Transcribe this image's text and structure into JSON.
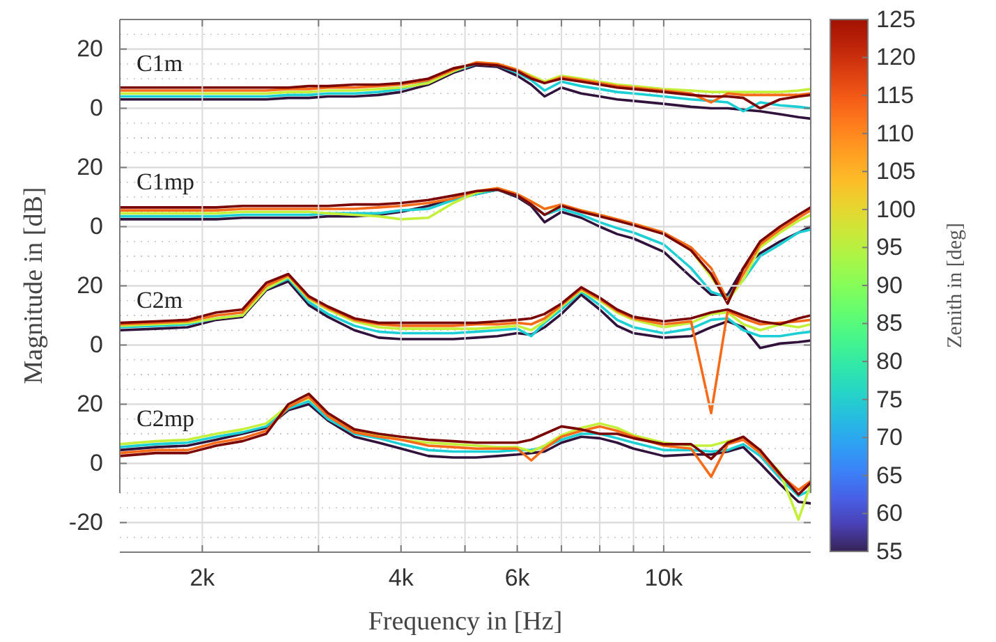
{
  "chart_data": [
    {
      "type": "line",
      "tick_labels": "y",
      "grid": true,
      "log": "x",
      "marker": "none",
      "line_style": "solid",
      "annotations": [
        "C1m"
      ],
      "clabel": "Zenith in [deg]",
      "clim": [
        55,
        125
      ],
      "cticks": [
        55,
        60,
        65,
        70,
        75,
        80,
        85,
        90,
        95,
        100,
        105,
        110,
        115,
        120,
        125
      ],
      "xlim": [
        1500,
        16700
      ],
      "ylim": [
        -10,
        30
      ],
      "yticks": [
        {
          "value": -10,
          "label": null
        },
        {
          "value": -5,
          "label": null
        },
        0,
        {
          "value": 5,
          "label": null
        },
        {
          "value": 10,
          "label": null
        },
        {
          "value": 15,
          "label": null
        },
        20,
        {
          "value": 25,
          "label": null
        }
      ],
      "x": [
        1500,
        1700,
        1900,
        2100,
        2300,
        2500,
        2700,
        2900,
        3100,
        3400,
        3700,
        4000,
        4400,
        4800,
        5200,
        5600,
        6000,
        6300,
        6600,
        7000,
        7500,
        8000,
        8500,
        9000,
        10000,
        11000,
        11800,
        12500,
        13200,
        14000,
        15000,
        16000,
        16700
      ],
      "series": [
        {
          "color": "#30123b",
          "values": [
            3,
            3,
            3,
            3,
            3,
            3,
            3.5,
            3.5,
            4,
            4,
            4.5,
            5.5,
            8,
            12,
            14.5,
            14,
            11,
            8,
            4,
            7,
            5,
            4,
            3,
            2.5,
            1.5,
            0.5,
            0,
            0,
            -0.5,
            -1,
            -2,
            -3,
            -3.5
          ]
        },
        {
          "color": "#1bcfd4",
          "values": [
            4,
            4,
            4,
            4,
            4,
            4,
            4.5,
            4.5,
            5,
            5,
            5.5,
            6.5,
            9,
            12.5,
            15,
            14.5,
            12,
            9.5,
            6,
            9,
            7.5,
            6.5,
            5.5,
            5,
            4,
            3,
            2.5,
            2,
            -1,
            2,
            1,
            0.5,
            0
          ]
        },
        {
          "color": "#c4f03a",
          "values": [
            5,
            5,
            5,
            5,
            5,
            5,
            5.5,
            5.5,
            6,
            6,
            6.5,
            7,
            8.5,
            12.5,
            15.5,
            15,
            13,
            11,
            9,
            11,
            10,
            9,
            8,
            7.5,
            6.5,
            6,
            5.5,
            5.5,
            5.5,
            5.5,
            5.5,
            6,
            6.5
          ]
        },
        {
          "color": "#f66b19",
          "values": [
            6,
            6,
            6,
            6,
            6,
            6,
            6.5,
            6.5,
            7,
            7,
            7.5,
            8,
            9.5,
            13,
            15.5,
            15,
            13,
            10.5,
            8.5,
            10.5,
            9.5,
            8.5,
            7.5,
            7,
            6,
            5,
            2,
            5,
            4.5,
            4.5,
            4.5,
            4.5,
            5
          ]
        },
        {
          "color": "#7a0403",
          "values": [
            7,
            7,
            7,
            7,
            7,
            7,
            7,
            7.5,
            7.5,
            8,
            8,
            8.5,
            10,
            13.5,
            15,
            14.5,
            12.5,
            10,
            8.5,
            10,
            9,
            8,
            7,
            6.5,
            5.5,
            4.5,
            4,
            4,
            3.5,
            0,
            3,
            4,
            4.5
          ]
        }
      ]
    },
    {
      "type": "line",
      "tick_labels": "y",
      "grid": true,
      "log": "x",
      "marker": "none",
      "line_style": "solid",
      "annotations": [
        "C1mp"
      ],
      "xlim": [
        1500,
        16700
      ],
      "ylim": [
        -30,
        30
      ],
      "yticks": [
        {
          "value": -30,
          "label": null
        },
        {
          "value": -10,
          "label": null
        },
        {
          "value": -5,
          "label": null
        },
        0,
        {
          "value": 5,
          "label": null
        },
        {
          "value": 10,
          "label": null
        },
        {
          "value": 15,
          "label": null
        },
        20,
        {
          "value": 25,
          "label": null
        },
        {
          "value": 30,
          "label": null
        }
      ],
      "x": [
        1500,
        1700,
        1900,
        2100,
        2300,
        2500,
        2700,
        2900,
        3100,
        3400,
        3700,
        4000,
        4400,
        4800,
        5200,
        5600,
        6000,
        6300,
        6600,
        7000,
        7500,
        8000,
        8500,
        9000,
        10000,
        11000,
        11800,
        12500,
        13200,
        14000,
        15000,
        16000,
        16700
      ],
      "series": [
        {
          "color": "#30123b",
          "values": [
            2.5,
            2.5,
            2.5,
            2.5,
            3,
            3,
            3,
            3,
            3.5,
            3.5,
            4,
            5,
            7,
            9.5,
            11,
            12.5,
            10,
            7,
            1.5,
            5,
            3,
            0,
            -2.5,
            -4,
            -8.5,
            -17,
            -23,
            -23,
            -14,
            -9,
            -5,
            -2,
            0
          ]
        },
        {
          "color": "#1bcfd4",
          "values": [
            3.5,
            3.5,
            3.5,
            3.5,
            4,
            4,
            4,
            4,
            4.5,
            4.5,
            4.5,
            5.5,
            6,
            9,
            11,
            12.5,
            10.5,
            7.5,
            4,
            6,
            4,
            1.5,
            -0.5,
            -2,
            -6,
            -14,
            -22,
            -24,
            -18,
            -10,
            -6,
            -2,
            -1
          ]
        },
        {
          "color": "#c4f03a",
          "values": [
            4.5,
            4.5,
            4.5,
            4.5,
            5,
            5,
            5,
            5,
            4.5,
            4,
            3.5,
            2.5,
            3,
            8,
            11.5,
            13,
            11,
            8.5,
            6,
            7,
            5.5,
            4,
            2.5,
            1,
            -2,
            -8,
            -17,
            -25,
            -18,
            -7,
            -2,
            2,
            4
          ]
        },
        {
          "color": "#f66b19",
          "values": [
            5.5,
            5.5,
            5.5,
            5.5,
            6,
            6,
            6,
            6,
            6,
            6,
            6.5,
            7,
            8,
            9.5,
            12,
            13,
            11,
            8.5,
            6,
            7.5,
            5.5,
            4,
            2.5,
            1,
            -2,
            -7,
            -14,
            -25,
            -16,
            -6,
            -1,
            3,
            5.5
          ]
        },
        {
          "color": "#7a0403",
          "values": [
            6.5,
            6.5,
            6.5,
            6.5,
            7,
            7,
            7,
            7,
            7,
            7.5,
            7.5,
            8,
            9,
            10.5,
            12,
            12.5,
            10.5,
            7.5,
            4,
            7,
            5,
            3.5,
            2,
            0.5,
            -2.5,
            -8,
            -16,
            -26,
            -14,
            -5,
            0,
            4,
            6.5
          ]
        }
      ]
    },
    {
      "type": "line",
      "tick_labels": "y",
      "grid": true,
      "log": "x",
      "marker": "none",
      "line_style": "solid",
      "annotations": [
        "C2m"
      ],
      "xlim": [
        1500,
        16700
      ],
      "ylim": [
        -30,
        30
      ],
      "yticks": [
        {
          "value": -30,
          "label": null
        },
        {
          "value": -10,
          "label": null
        },
        {
          "value": -5,
          "label": null
        },
        0,
        {
          "value": 5,
          "label": null
        },
        {
          "value": 10,
          "label": null
        },
        {
          "value": 15,
          "label": null
        },
        20,
        {
          "value": 25,
          "label": null
        },
        {
          "value": 30,
          "label": null
        }
      ],
      "x": [
        1500,
        1700,
        1900,
        2100,
        2300,
        2500,
        2700,
        2900,
        3100,
        3400,
        3700,
        4000,
        4400,
        4800,
        5200,
        5600,
        6000,
        6300,
        6600,
        7000,
        7500,
        8000,
        8500,
        9000,
        10000,
        11000,
        11800,
        12500,
        13200,
        14000,
        15000,
        16000,
        16700
      ],
      "series": [
        {
          "color": "#30123b",
          "values": [
            5,
            5.5,
            6,
            8.5,
            9.5,
            18.5,
            21.5,
            13.5,
            9.5,
            5,
            2.5,
            2,
            2,
            2,
            2.5,
            3,
            4,
            3.5,
            6,
            10.5,
            17,
            12,
            6.5,
            4,
            2.5,
            3,
            6,
            8,
            6,
            -1,
            0.5,
            1,
            1.5
          ]
        },
        {
          "color": "#1bcfd4",
          "values": [
            6,
            6.5,
            7,
            9,
            10,
            19,
            22.5,
            14.5,
            10.5,
            6.5,
            4.5,
            4,
            4,
            4,
            4.5,
            5,
            5.5,
            3,
            7.5,
            12,
            18,
            13.5,
            8.5,
            6,
            4,
            5.5,
            8.5,
            9,
            5,
            3,
            3,
            4,
            4.5
          ]
        },
        {
          "color": "#c4f03a",
          "values": [
            6.5,
            7,
            7.5,
            9,
            10,
            19,
            23,
            15.5,
            12,
            8,
            6,
            5.5,
            5.5,
            5.5,
            5.5,
            6,
            6.5,
            5,
            8,
            13,
            18.5,
            15,
            11,
            8.5,
            6,
            7.5,
            10.5,
            11,
            7,
            5,
            7,
            6,
            7
          ]
        },
        {
          "color": "#f66b19",
          "values": [
            7,
            7.5,
            8,
            10,
            11,
            20,
            23.5,
            16,
            12.5,
            8.5,
            7,
            6.5,
            6.5,
            6.5,
            7,
            7,
            7.5,
            7,
            9,
            13.5,
            19,
            15.5,
            11.5,
            9,
            7,
            8,
            -23,
            11.5,
            9,
            7,
            7.5,
            8,
            8.5
          ]
        },
        {
          "color": "#7a0403",
          "values": [
            7.5,
            8,
            8.5,
            11,
            12,
            21,
            24,
            16.5,
            13,
            9,
            7.5,
            7.5,
            7.5,
            7.5,
            7.5,
            8,
            8.5,
            9,
            10.5,
            14,
            19.5,
            16,
            12,
            9.5,
            8,
            9,
            11,
            12,
            10,
            8,
            7,
            9,
            10
          ]
        }
      ]
    },
    {
      "type": "line",
      "grid": true,
      "log": "x",
      "marker": "none",
      "line_style": "solid",
      "annotations": [
        "C2mp"
      ],
      "xlabel": "Frequency in [Hz]",
      "ylabel": "Magnitude in [dB]",
      "xlim": [
        1500,
        16700
      ],
      "xticks": [
        {
          "value": 2000,
          "label": "2k"
        },
        {
          "value": 3000,
          "label": null
        },
        {
          "value": 4000,
          "label": "4k"
        },
        {
          "value": 5000,
          "label": null
        },
        {
          "value": 6000,
          "label": "6k"
        },
        {
          "value": 7000,
          "label": null
        },
        {
          "value": 8000,
          "label": null
        },
        {
          "value": 9000,
          "label": null
        },
        {
          "value": 10000,
          "label": "10k"
        }
      ],
      "ylim": [
        -30,
        30
      ],
      "yticks": [
        {
          "value": -25,
          "label": null
        },
        -20,
        {
          "value": -15,
          "label": null
        },
        {
          "value": -10,
          "label": null
        },
        {
          "value": -5,
          "label": null
        },
        0,
        {
          "value": 5,
          "label": null
        },
        {
          "value": 10,
          "label": null
        },
        {
          "value": 15,
          "label": null
        },
        20,
        {
          "value": 25,
          "label": null
        },
        {
          "value": 30,
          "label": null
        }
      ],
      "x": [
        1500,
        1700,
        1900,
        2100,
        2300,
        2500,
        2700,
        2900,
        3100,
        3400,
        3700,
        4000,
        4400,
        4800,
        5200,
        5600,
        6000,
        6300,
        6600,
        7000,
        7500,
        8000,
        8500,
        9000,
        10000,
        11000,
        11800,
        12500,
        13200,
        14000,
        15000,
        16000,
        16700
      ],
      "series": [
        {
          "color": "#30123b",
          "values": [
            4.5,
            5.5,
            6,
            8,
            10,
            12,
            18,
            20,
            14.5,
            9,
            7,
            5,
            2.5,
            2,
            2,
            2.5,
            3,
            3.5,
            4,
            7,
            9,
            8.5,
            7,
            5,
            2.5,
            3,
            3,
            4,
            5.5,
            0,
            -7,
            -13,
            -13.5
          ]
        },
        {
          "color": "#1bcfd4",
          "values": [
            5.5,
            6.5,
            7,
            9,
            10.5,
            12.5,
            18.5,
            21,
            15,
            10,
            8.5,
            6.5,
            4.5,
            4,
            4,
            4,
            4.5,
            4.5,
            5.5,
            8,
            10,
            10,
            8.5,
            7,
            4.5,
            4.5,
            4,
            4.5,
            6.5,
            2.5,
            -5,
            -11,
            -9
          ]
        },
        {
          "color": "#c4f03a",
          "values": [
            6.5,
            7.5,
            8,
            10,
            11.5,
            13.5,
            19.5,
            22,
            16.5,
            11,
            9.5,
            8,
            7,
            6.5,
            6,
            5.5,
            5.5,
            4,
            6,
            9.5,
            12,
            13.5,
            12,
            9.5,
            7,
            6,
            6,
            7.5,
            8.5,
            4,
            -3,
            -19,
            -7
          ]
        },
        {
          "color": "#f66b19",
          "values": [
            3.5,
            4.5,
            4.5,
            7,
            8.5,
            11,
            19,
            22.5,
            16,
            10.5,
            9,
            8,
            6,
            5.5,
            5,
            5,
            5,
            1,
            5,
            9,
            11,
            12.5,
            11,
            9,
            6,
            5,
            -4.5,
            6.5,
            8,
            3.5,
            -4,
            -9,
            -6
          ]
        },
        {
          "color": "#7a0403",
          "values": [
            2.5,
            3.5,
            3.5,
            6,
            7.5,
            10,
            20,
            23.5,
            17,
            11.5,
            10,
            9,
            8,
            7.5,
            7,
            7,
            7,
            8,
            10,
            12.5,
            11.5,
            10,
            10,
            8.5,
            6.5,
            6.5,
            1.5,
            7,
            9,
            4.5,
            -3.5,
            -10.5,
            -6.5
          ]
        }
      ]
    }
  ]
}
